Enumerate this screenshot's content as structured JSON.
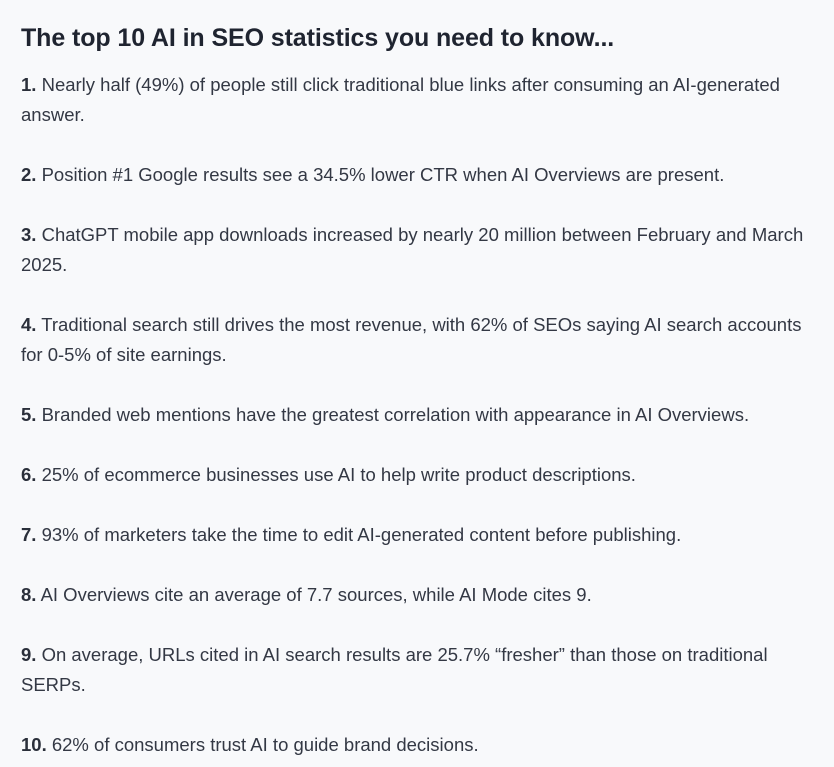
{
  "heading": "The top 10 AI in SEO statistics you need to know...",
  "stats": [
    {
      "number": "1.",
      "text": "Nearly half (49%) of people still click traditional blue links after consuming an AI-generated answer."
    },
    {
      "number": "2.",
      "text": "Position #1 Google results see a 34.5% lower CTR when AI Overviews are present."
    },
    {
      "number": "3.",
      "text": "ChatGPT mobile app downloads increased by nearly 20 million between February and March 2025."
    },
    {
      "number": "4.",
      "text": "Traditional search still drives the most revenue, with 62% of SEOs saying AI search accounts for 0-5% of site earnings."
    },
    {
      "number": "5.",
      "text": "Branded web mentions have the greatest correlation with appearance in AI Overviews."
    },
    {
      "number": "6.",
      "text": "25% of ecommerce businesses use AI to help write product descriptions."
    },
    {
      "number": "7.",
      "text": "93% of marketers take the time to edit AI-generated content before publishing."
    },
    {
      "number": "8.",
      "text": "AI Overviews cite an average of 7.7 sources, while AI Mode cites 9."
    },
    {
      "number": "9.",
      "text": "On average, URLs cited in AI search results are 25.7% “fresher” than those on traditional SERPs."
    },
    {
      "number": "10.",
      "text": "62% of consumers trust AI to guide brand decisions."
    }
  ]
}
